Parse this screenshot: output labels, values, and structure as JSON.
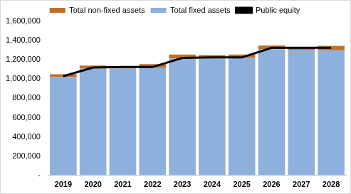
{
  "chart_data": {
    "type": "bar",
    "stacked": true,
    "grid": false,
    "legend": "top",
    "categories": [
      "2019",
      "2020",
      "2021",
      "2022",
      "2023",
      "2024",
      "2025",
      "2026",
      "2027",
      "2028"
    ],
    "series": [
      {
        "name": "Total non-fixed assets",
        "type": "bar",
        "color": "#c0702a",
        "values": [
          30000,
          30000,
          25000,
          35000,
          40000,
          35000,
          35000,
          40000,
          25000,
          45000
        ]
      },
      {
        "name": "Total fixed assets",
        "type": "bar",
        "color": "#8eb0dc",
        "values": [
          1020000,
          1110000,
          1110000,
          1120000,
          1215000,
          1215000,
          1220000,
          1310000,
          1305000,
          1300000
        ]
      },
      {
        "name": "Public equity",
        "type": "line",
        "color": "#000000",
        "values": [
          1030000,
          1120000,
          1125000,
          1125000,
          1220000,
          1225000,
          1225000,
          1325000,
          1325000,
          1325000
        ]
      }
    ],
    "ylim": [
      0,
      1600000
    ],
    "yticks": [
      {
        "value": 0,
        "label": "-"
      },
      {
        "value": 200000,
        "label": "200,000"
      },
      {
        "value": 400000,
        "label": "400,000"
      },
      {
        "value": 600000,
        "label": "600,000"
      },
      {
        "value": 800000,
        "label": "800,000"
      },
      {
        "value": 1000000,
        "label": "1,000,000"
      },
      {
        "value": 1200000,
        "label": "1,200,000"
      },
      {
        "value": 1400000,
        "label": "1,400,000"
      },
      {
        "value": 1600000,
        "label": "1,600,000"
      }
    ]
  }
}
